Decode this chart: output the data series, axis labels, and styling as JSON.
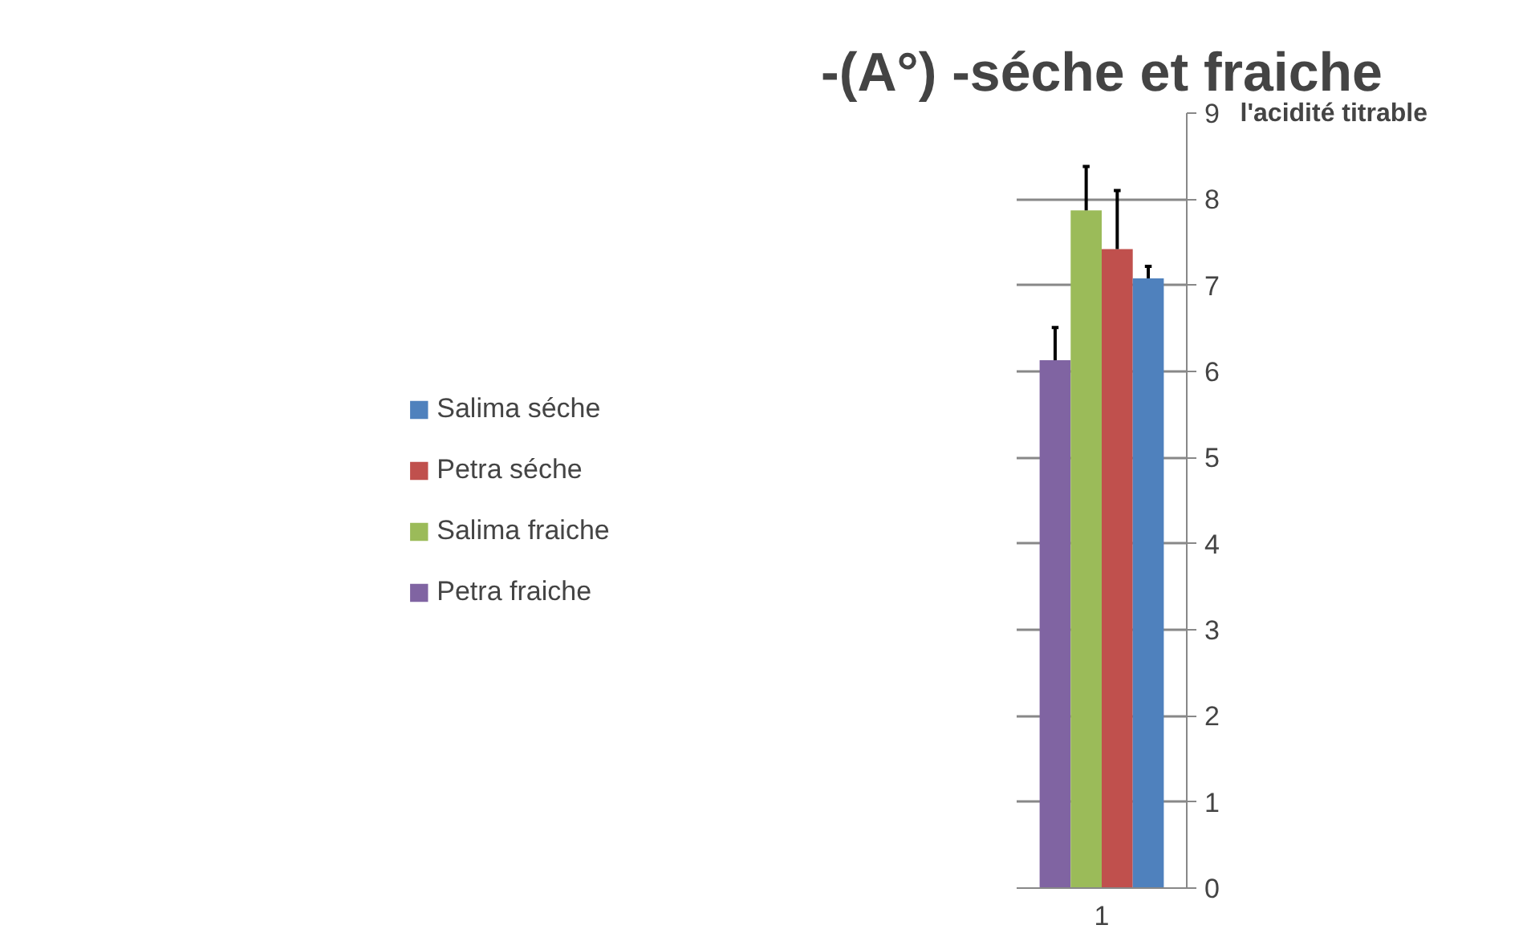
{
  "chart_data": {
    "type": "bar",
    "title": "-(A°) -séche et fraiche",
    "ylabel": "l'acidité titrable",
    "categories": [
      "1"
    ],
    "series": [
      {
        "name": "Petra fraiche",
        "color": "#8064a2",
        "values": [
          6.13
        ],
        "errors": [
          [
            6.13,
            6.51
          ]
        ]
      },
      {
        "name": "Salima fraiche",
        "color": "#9bbb59",
        "values": [
          7.87
        ],
        "errors": [
          [
            7.87,
            8.38
          ]
        ]
      },
      {
        "name": "Petra séche",
        "color": "#c0504d",
        "values": [
          7.42
        ],
        "errors": [
          [
            7.42,
            8.1
          ]
        ]
      },
      {
        "name": "Salima séche",
        "color": "#4f81bd",
        "values": [
          7.08
        ],
        "errors": [
          [
            7.08,
            7.22
          ]
        ]
      }
    ],
    "ylim": [
      0,
      9
    ],
    "yticks": [
      0,
      1,
      2,
      3,
      4,
      5,
      6,
      7,
      8,
      9
    ],
    "grid": "y",
    "legend": "left"
  }
}
